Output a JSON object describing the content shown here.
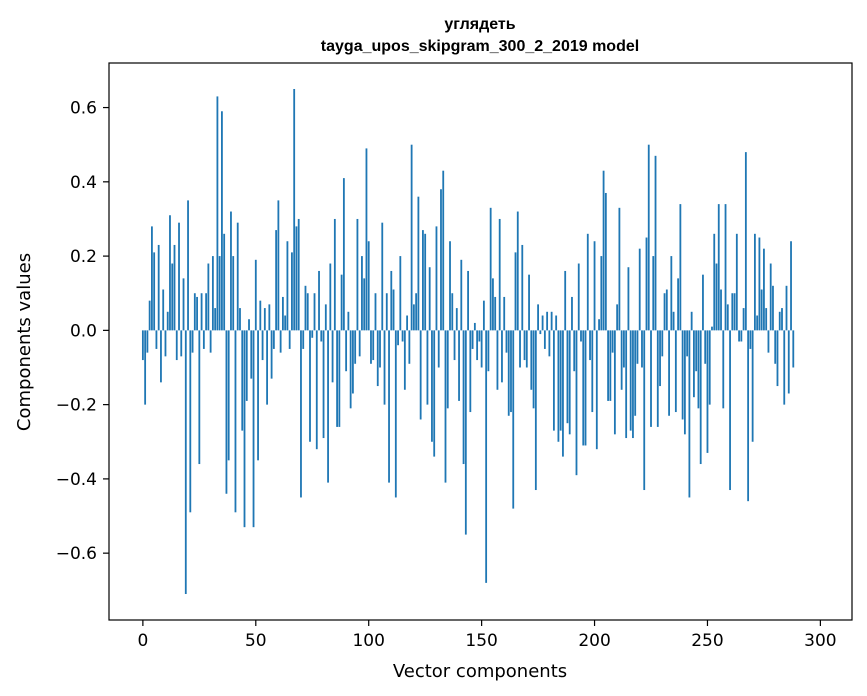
{
  "chart_data": {
    "type": "bar",
    "title_line1": "углядеть",
    "title_line2": "tayga_upos_skipgram_300_2_2019 model",
    "xlabel": "Vector components",
    "ylabel": "Components values",
    "xlim": [
      -15,
      314
    ],
    "ylim": [
      -0.78,
      0.72
    ],
    "xticks": [
      0,
      50,
      100,
      150,
      200,
      250,
      300
    ],
    "xtick_labels": [
      "0",
      "50",
      "100",
      "150",
      "200",
      "250",
      "300"
    ],
    "yticks": [
      -0.6,
      -0.4,
      -0.2,
      0.0,
      0.2,
      0.4,
      0.6
    ],
    "ytick_labels": [
      "−0.6",
      "−0.4",
      "−0.2",
      "0.0",
      "0.2",
      "0.4",
      "0.6"
    ],
    "bar_color": "#1f77b4",
    "values": [
      -0.08,
      -0.2,
      -0.06,
      0.08,
      0.28,
      0.21,
      -0.05,
      0.23,
      -0.14,
      0.11,
      -0.07,
      0.05,
      0.31,
      0.18,
      0.23,
      -0.08,
      0.29,
      -0.07,
      0.14,
      -0.71,
      0.35,
      -0.49,
      -0.06,
      0.1,
      0.09,
      -0.36,
      0.1,
      -0.05,
      0.1,
      0.18,
      -0.06,
      0.2,
      0.06,
      0.63,
      0.2,
      0.59,
      0.26,
      -0.44,
      -0.35,
      0.32,
      0.2,
      -0.49,
      0.29,
      0.06,
      -0.27,
      -0.53,
      -0.19,
      0.03,
      -0.13,
      -0.53,
      0.19,
      -0.35,
      0.08,
      -0.08,
      0.06,
      -0.2,
      0.07,
      -0.13,
      -0.05,
      0.27,
      0.35,
      -0.06,
      0.09,
      0.04,
      0.24,
      -0.05,
      0.21,
      0.65,
      0.28,
      0.3,
      -0.45,
      -0.05,
      0.12,
      0.1,
      -0.3,
      -0.02,
      0.1,
      -0.32,
      0.16,
      -0.03,
      -0.29,
      0.07,
      -0.41,
      0.18,
      -0.14,
      0.3,
      -0.26,
      -0.26,
      0.15,
      0.41,
      -0.11,
      0.05,
      -0.21,
      -0.17,
      -0.09,
      0.3,
      -0.07,
      0.2,
      0.14,
      0.49,
      0.24,
      -0.09,
      -0.08,
      0.1,
      -0.15,
      -0.1,
      0.29,
      -0.2,
      0.1,
      -0.41,
      0.16,
      0.11,
      -0.45,
      -0.04,
      0.2,
      -0.03,
      -0.16,
      0.04,
      -0.09,
      0.5,
      0.07,
      0.1,
      0.36,
      -0.24,
      0.27,
      0.26,
      -0.2,
      0.17,
      -0.3,
      -0.34,
      0.28,
      -0.1,
      0.38,
      0.43,
      -0.41,
      -0.21,
      0.24,
      0.1,
      -0.08,
      0.06,
      -0.19,
      0.19,
      -0.36,
      -0.55,
      0.16,
      -0.22,
      -0.05,
      0.02,
      -0.08,
      -0.03,
      -0.1,
      0.08,
      -0.68,
      -0.11,
      0.33,
      0.14,
      0.09,
      -0.16,
      0.3,
      -0.14,
      0.09,
      -0.06,
      -0.23,
      -0.22,
      -0.48,
      0.21,
      0.32,
      -0.1,
      0.23,
      -0.08,
      -0.1,
      0.15,
      -0.16,
      -0.21,
      -0.43,
      0.07,
      -0.01,
      0.04,
      -0.05,
      0.05,
      -0.07,
      0.05,
      -0.27,
      0.04,
      -0.3,
      -0.27,
      -0.34,
      0.16,
      -0.25,
      -0.28,
      0.09,
      -0.11,
      -0.39,
      0.18,
      -0.03,
      -0.31,
      -0.31,
      0.26,
      -0.08,
      -0.22,
      0.24,
      -0.32,
      0.03,
      0.2,
      0.43,
      0.37,
      -0.19,
      -0.19,
      -0.06,
      -0.28,
      0.07,
      0.33,
      -0.16,
      -0.1,
      -0.29,
      0.17,
      -0.27,
      -0.29,
      -0.23,
      -0.09,
      0.22,
      -0.1,
      -0.43,
      0.25,
      0.5,
      -0.26,
      0.2,
      0.47,
      -0.26,
      -0.15,
      -0.07,
      0.1,
      0.11,
      -0.23,
      0.2,
      0.05,
      -0.22,
      0.14,
      0.34,
      -0.24,
      -0.28,
      -0.07,
      -0.45,
      0.05,
      -0.18,
      -0.11,
      -0.21,
      -0.36,
      0.15,
      -0.09,
      -0.33,
      -0.2,
      0.01,
      0.26,
      0.18,
      0.34,
      0.11,
      -0.21,
      0.34,
      0.07,
      -0.43,
      0.1,
      0.1,
      0.26,
      -0.03,
      -0.03,
      0.06,
      0.48,
      -0.46,
      -0.05,
      -0.3,
      0.26,
      0.04,
      0.25,
      0.11,
      0.22,
      0.06,
      -0.06,
      0.18,
      0.12,
      -0.09,
      -0.15,
      0.05,
      0.06,
      -0.2,
      0.12,
      -0.17,
      0.24,
      -0.1
    ]
  }
}
